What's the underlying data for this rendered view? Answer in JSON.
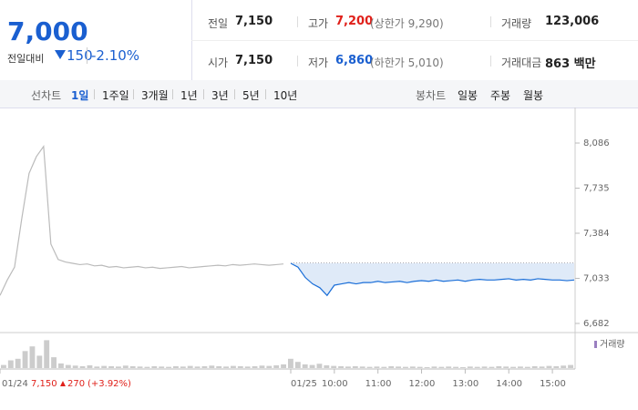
{
  "quote": {
    "price": "7,000",
    "change_label": "전일대비",
    "change": "150",
    "change_pct": "-2.10%"
  },
  "summary": [
    [
      {
        "k": "전일",
        "v": "7,150"
      },
      {
        "k": "고가",
        "v": "7,200",
        "extra": "(상한가 9,290)"
      },
      {
        "k": "거래량",
        "v": "123,006"
      }
    ],
    [
      {
        "k": "시가",
        "v": "7,150"
      },
      {
        "k": "저가",
        "v": "6,860",
        "extra": "(하한가 5,010)"
      },
      {
        "k": "거래대금",
        "v": "863 백만"
      }
    ]
  ],
  "tabs": {
    "line_label": "선차트",
    "line": [
      "1일",
      "1주일",
      "3개월",
      "1년",
      "3년",
      "5년",
      "10년"
    ],
    "candle_label": "봉차트",
    "candle": [
      "일봉",
      "주봉",
      "월봉"
    ]
  },
  "chart_data": {
    "type": "line",
    "series": [
      {
        "color": "#bbbbbb",
        "x": [
          0,
          1,
          2,
          3,
          4,
          5,
          6,
          7,
          8,
          9,
          10,
          11,
          12,
          13,
          14,
          15,
          16,
          17,
          18,
          19,
          20,
          21,
          22,
          23,
          24,
          25,
          26,
          27,
          28,
          29,
          30,
          31,
          32,
          33,
          34,
          35,
          36,
          37,
          38,
          39
        ],
        "values": [
          6900,
          7020,
          7120,
          7500,
          7850,
          7980,
          8060,
          7300,
          7180,
          7160,
          7150,
          7140,
          7145,
          7130,
          7135,
          7120,
          7125,
          7115,
          7120,
          7125,
          7115,
          7120,
          7110,
          7115,
          7120,
          7125,
          7115,
          7120,
          7125,
          7130,
          7135,
          7130,
          7140,
          7135,
          7140,
          7145,
          7140,
          7135,
          7140,
          7145
        ]
      },
      {
        "color": "#1a6ed8",
        "x": [
          40,
          41,
          42,
          43,
          44,
          45,
          46,
          47,
          48,
          49,
          50,
          51,
          52,
          53,
          54,
          55,
          56,
          57,
          58,
          59,
          60,
          61,
          62,
          63,
          64,
          65,
          66,
          67,
          68,
          69,
          70,
          71,
          72,
          73,
          74,
          75,
          76,
          77,
          78,
          79
        ],
        "values": [
          7150,
          7120,
          7040,
          6990,
          6960,
          6900,
          6980,
          6990,
          7000,
          6990,
          7000,
          7000,
          7010,
          7000,
          7005,
          7010,
          7000,
          7010,
          7015,
          7010,
          7020,
          7010,
          7015,
          7020,
          7010,
          7020,
          7025,
          7020,
          7020,
          7025,
          7030,
          7020,
          7025,
          7020,
          7030,
          7025,
          7020,
          7020,
          7015,
          7020
        ]
      }
    ],
    "reference": 7150,
    "volume": {
      "name": "거래량",
      "color": "#cccccc",
      "ylim": [
        0,
        100
      ],
      "values": [
        10,
        25,
        30,
        55,
        70,
        40,
        90,
        35,
        15,
        10,
        8,
        6,
        9,
        5,
        7,
        6,
        5,
        8,
        6,
        5,
        4,
        6,
        5,
        4,
        6,
        5,
        7,
        5,
        6,
        8,
        6,
        5,
        7,
        6,
        5,
        6,
        8,
        7,
        9,
        12,
        30,
        20,
        12,
        10,
        14,
        9,
        7,
        6,
        5,
        6,
        5,
        4,
        5,
        4,
        6,
        5,
        4,
        5,
        4,
        3,
        5,
        4,
        5,
        4,
        3,
        5,
        4,
        5,
        4,
        6,
        5,
        4,
        5,
        4,
        6,
        5,
        7,
        6,
        8,
        10
      ]
    },
    "xlim": [
      0,
      79
    ],
    "ylim": [
      6682,
      8086
    ],
    "yticks": [
      {
        "value": 8086,
        "label": "8,086"
      },
      {
        "value": 7735,
        "label": "7,735"
      },
      {
        "value": 7384,
        "label": "7,384"
      },
      {
        "value": 7033,
        "label": "7,033"
      },
      {
        "value": 6682,
        "label": "6,682"
      }
    ],
    "xticks": [
      {
        "value": 0,
        "label": "01/24"
      },
      {
        "value": 40,
        "label": "01/25"
      },
      {
        "value": 46,
        "label": "10:00"
      },
      {
        "value": 52,
        "label": "11:00"
      },
      {
        "value": 58,
        "label": "12:00"
      },
      {
        "value": 64,
        "label": "13:00"
      },
      {
        "value": 70,
        "label": "14:00"
      },
      {
        "value": 76,
        "label": "15:00"
      }
    ],
    "footnote": {
      "price": "7,150",
      "change": "270",
      "pct": "(+3.92%)"
    }
  }
}
